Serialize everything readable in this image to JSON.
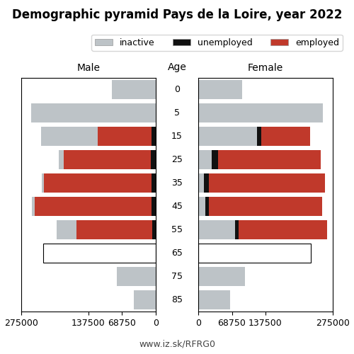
{
  "title": "Demographic pyramid Pays de la Loire, year 2022",
  "annotations": [
    "www.iz.sk/RFRG0"
  ],
  "chart_data": [
    {
      "type": "bar",
      "orientation": "horizontal",
      "stacked": true,
      "title": "Male",
      "ylabel": "Age",
      "categories": [
        "85",
        "75",
        "65",
        "55",
        "45",
        "35",
        "25",
        "15",
        "5",
        "0"
      ],
      "series": [
        {
          "name": "unemployed",
          "color": "#111111",
          "values": [
            0,
            0,
            0,
            7000,
            8000,
            8000,
            10000,
            9000,
            0,
            0
          ]
        },
        {
          "name": "employed",
          "color": "#c0392b",
          "values": [
            0,
            0,
            0,
            155000,
            240000,
            220000,
            178000,
            110000,
            0,
            0
          ]
        },
        {
          "name": "inactive",
          "color": "#bdc3c7",
          "colors": [
            "#bdc3c7",
            "#bdc3c7",
            "#ffffff",
            "#bdc3c7",
            "#bdc3c7",
            "#bdc3c7",
            "#bdc3c7",
            "#bdc3c7",
            "#bdc3c7",
            "#bdc3c7"
          ],
          "values": [
            45000,
            80000,
            230000,
            40000,
            5000,
            5000,
            10000,
            115000,
            255000,
            90000
          ]
        }
      ],
      "xlim": [
        275000,
        0
      ],
      "xticks": [
        275000,
        137500,
        68750,
        0
      ],
      "grid": false
    },
    {
      "type": "bar",
      "orientation": "horizontal",
      "stacked": true,
      "title": "Female",
      "categories": [
        "85",
        "75",
        "65",
        "55",
        "45",
        "35",
        "25",
        "15",
        "5",
        "0"
      ],
      "series": [
        {
          "name": "inactive",
          "color": "#bdc3c7",
          "colors": [
            "#bdc3c7",
            "#bdc3c7",
            "#ffffff",
            "#bdc3c7",
            "#bdc3c7",
            "#bdc3c7",
            "#bdc3c7",
            "#bdc3c7",
            "#bdc3c7",
            "#bdc3c7"
          ],
          "values": [
            65000,
            95000,
            230000,
            75000,
            15000,
            12000,
            28000,
            120000,
            255000,
            90000
          ]
        },
        {
          "name": "unemployed",
          "color": "#111111",
          "values": [
            0,
            0,
            0,
            8000,
            7000,
            9000,
            12000,
            9000,
            0,
            0
          ]
        },
        {
          "name": "employed",
          "color": "#c0392b",
          "values": [
            0,
            0,
            0,
            180000,
            232000,
            238000,
            210000,
            100000,
            0,
            0
          ]
        }
      ],
      "xlim": [
        0,
        275000
      ],
      "xticks": [
        0,
        68750,
        137500,
        275000
      ],
      "grid": false,
      "legend": "upper right"
    }
  ]
}
